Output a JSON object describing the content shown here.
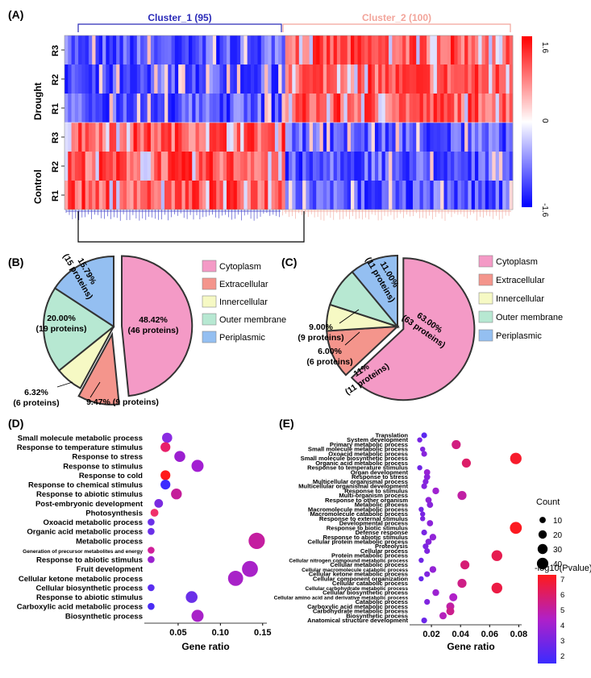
{
  "panels": {
    "A": {
      "label": "(A)",
      "cluster1_title": "Cluster_1 (95)",
      "cluster2_title": "Cluster_2 (100)",
      "group_labels": [
        "Drought",
        "Control"
      ],
      "row_labels": [
        "R3",
        "R2",
        "R1",
        "R3",
        "R2",
        "R1"
      ],
      "color_scale": {
        "max_label": "1.6",
        "mid_label": "0",
        "min_label": "-1.6",
        "high_color": "#ff0000",
        "mid_color": "#ffffff",
        "low_color": "#0000ff"
      },
      "cluster1_color": "#2a2ab8",
      "cluster2_color": "#f2a49a"
    },
    "B": {
      "label": "(B)"
    },
    "C": {
      "label": "(C)"
    },
    "D": {
      "label": "(D)"
    },
    "E": {
      "label": "(E)"
    }
  },
  "pie_legend": {
    "items": [
      {
        "name": "Cytoplasm",
        "color": "#f49ac6"
      },
      {
        "name": "Extracellular",
        "color": "#f4958c"
      },
      {
        "name": "Innercellular",
        "color": "#f6f9c4"
      },
      {
        "name": "Outer membrane",
        "color": "#b7e8d2"
      },
      {
        "name": "Periplasmic",
        "color": "#94bff1"
      }
    ]
  },
  "chart_data": [
    {
      "type": "heatmap",
      "panel": "A",
      "rows": [
        "Drought R3",
        "Drought R2",
        "Drought R1",
        "Control R3",
        "Control R2",
        "Control R1"
      ],
      "clusters": [
        {
          "name": "Cluster_1",
          "proteins": 95
        },
        {
          "name": "Cluster_2",
          "proteins": 100
        }
      ],
      "pattern": {
        "Drought": {
          "Cluster_1": "low",
          "Cluster_2": "high"
        },
        "Control": {
          "Cluster_1": "high",
          "Cluster_2": "low"
        }
      },
      "value_range": [
        -1.6,
        1.6
      ]
    },
    {
      "type": "pie",
      "panel": "B",
      "slices": [
        {
          "category": "Cytoplasm",
          "percent": 48.42,
          "proteins": 46,
          "label1": "48.42%",
          "label2": "(46 proteins)",
          "exploded": true
        },
        {
          "category": "Extracellular",
          "percent": 9.47,
          "proteins": 9,
          "label1": "9.47% (9 proteins)",
          "label2": "",
          "exploded": true
        },
        {
          "category": "Innercellular",
          "percent": 6.32,
          "proteins": 6,
          "label1": "6.32%",
          "label2": "(6 proteins)",
          "exploded": false
        },
        {
          "category": "Outer membrane",
          "percent": 20.0,
          "proteins": 19,
          "label1": "20.00%",
          "label2": "(19 proteins)",
          "exploded": false
        },
        {
          "category": "Periplasmic",
          "percent": 15.79,
          "proteins": 15,
          "label1": "15.79%",
          "label2": "(15 proteins)",
          "exploded": false
        }
      ]
    },
    {
      "type": "pie",
      "panel": "C",
      "slices": [
        {
          "category": "Cytoplasm",
          "percent": 63.0,
          "proteins": 63,
          "label1": "63.00%",
          "label2": "(63 proteins)",
          "exploded": true
        },
        {
          "category": "Extracellular",
          "percent": 11.0,
          "proteins": 11,
          "label1": "11%",
          "label2": "(11 proteins)",
          "exploded": false
        },
        {
          "category": "Innercellular",
          "percent": 6.0,
          "proteins": 6,
          "label1": "6.00%",
          "label2": "(6 proteins)",
          "exploded": false
        },
        {
          "category": "Outer membrane",
          "percent": 9.0,
          "proteins": 9,
          "label1": "9.00%",
          "label2": "(9 proteins)",
          "exploded": false
        },
        {
          "category": "Periplasmic",
          "percent": 11.0,
          "proteins": 11,
          "label1": "11.00%",
          "label2": "(11 proteins)",
          "exploded": false
        }
      ]
    },
    {
      "type": "scatter",
      "panel": "D",
      "xlabel": "Gene ratio",
      "xlim": [
        0.01,
        0.155
      ],
      "xticks": [
        0.05,
        0.1,
        0.15
      ],
      "xtick_labels": [
        "0.05",
        "0.10",
        "0.15"
      ],
      "points": [
        {
          "term": "Small molecule metabolic process",
          "x": 0.037,
          "count": 12,
          "color": "#8a2be2"
        },
        {
          "term": "Response to temperature stimulus",
          "x": 0.035,
          "count": 11,
          "color": "#e8206a"
        },
        {
          "term": "Response to stress",
          "x": 0.052,
          "count": 15,
          "color": "#9b1fd0"
        },
        {
          "term": "Response to stimulus",
          "x": 0.073,
          "count": 19,
          "color": "#a31fd2"
        },
        {
          "term": "Response to cold",
          "x": 0.035,
          "count": 11,
          "color": "#ff1a1a"
        },
        {
          "term": "Response to chemical stimulus",
          "x": 0.035,
          "count": 11,
          "color": "#3b2bff"
        },
        {
          "term": "Response to abiotic stimulus",
          "x": 0.048,
          "count": 14,
          "color": "#c41e9a"
        },
        {
          "term": "Post-embryonic development",
          "x": 0.027,
          "count": 8,
          "color": "#7b2be0"
        },
        {
          "term": "Photosynthesis",
          "x": 0.022,
          "count": 6,
          "color": "#f0306a"
        },
        {
          "term": "Oxoacid metabolic process",
          "x": 0.018,
          "count": 4,
          "color": "#6a30e8"
        },
        {
          "term": "Organic acid metabolic process",
          "x": 0.018,
          "count": 4,
          "color": "#6a30e8"
        },
        {
          "term": "Metabolic process",
          "x": 0.143,
          "count": 40,
          "color": "#c41ea0"
        },
        {
          "term": "Generation of precursor metabolites and energy",
          "x": 0.018,
          "count": 4,
          "color": "#d0209a"
        },
        {
          "term": "Response to abiotic stimulus",
          "x": 0.018,
          "count": 4,
          "color": "#9a22d0"
        },
        {
          "term": "Fruit development",
          "x": 0.135,
          "count": 38,
          "color": "#a822c8"
        },
        {
          "term": "Cellular ketone metabolic process",
          "x": 0.118,
          "count": 33,
          "color": "#a822c8"
        },
        {
          "term": "Cellular biosynthetic process",
          "x": 0.018,
          "count": 4,
          "color": "#5a2ef0"
        },
        {
          "term": "Response to abiotic stimulus",
          "x": 0.066,
          "count": 18,
          "color": "#6a30e8"
        },
        {
          "term": "Carboxylic acid metabolic process",
          "x": 0.018,
          "count": 4,
          "color": "#4a2cf4"
        },
        {
          "term": "Biosynthetic process",
          "x": 0.073,
          "count": 19,
          "color": "#a822c8"
        }
      ]
    },
    {
      "type": "scatter",
      "panel": "E",
      "xlabel": "Gene ratio",
      "xlim": [
        0.005,
        0.082
      ],
      "xticks": [
        0.02,
        0.04,
        0.06,
        0.08
      ],
      "xtick_labels": [
        "0.02",
        "0.04",
        "0.06",
        "0.08"
      ],
      "count_legend": {
        "title": "Count",
        "values": [
          10,
          20,
          30,
          40
        ]
      },
      "color_legend": {
        "title": "-log10(Pvalue)",
        "ticks": [
          2,
          3,
          4,
          5,
          6,
          7
        ],
        "range": [
          1.5,
          7.3
        ]
      },
      "points": [
        {
          "term": "Translation",
          "x": 0.015,
          "count": 4,
          "p": 2.3
        },
        {
          "term": "System development",
          "x": 0.012,
          "count": 3,
          "p": 3.0
        },
        {
          "term": "Primary metabolic process",
          "x": 0.037,
          "count": 12,
          "p": 5.6
        },
        {
          "term": "Small molecule metabolic process",
          "x": 0.014,
          "count": 3,
          "p": 3.2
        },
        {
          "term": "Oxoacid metabolic process",
          "x": 0.015,
          "count": 4,
          "p": 3.4
        },
        {
          "term": "Small molecule biosynthetic process",
          "x": 0.078,
          "count": 20,
          "p": 7.0
        },
        {
          "term": "Organic acid metabolic process",
          "x": 0.044,
          "count": 12,
          "p": 6.0
        },
        {
          "term": "Response to temperature stimulus",
          "x": 0.012,
          "count": 3,
          "p": 2.8
        },
        {
          "term": "Organ development",
          "x": 0.017,
          "count": 5,
          "p": 3.8
        },
        {
          "term": "Response to stress",
          "x": 0.017,
          "count": 5,
          "p": 3.5
        },
        {
          "term": "Multicellular organismal process",
          "x": 0.016,
          "count": 4,
          "p": 3.3
        },
        {
          "term": "Multicellular organismal development",
          "x": 0.015,
          "count": 4,
          "p": 3.3
        },
        {
          "term": "Response to stimulus",
          "x": 0.023,
          "count": 6,
          "p": 4.0
        },
        {
          "term": "Multi-organism process",
          "x": 0.041,
          "count": 12,
          "p": 5.0
        },
        {
          "term": "Response to other organism",
          "x": 0.018,
          "count": 5,
          "p": 3.6
        },
        {
          "term": "Metabolic process",
          "x": 0.019,
          "count": 5,
          "p": 3.4
        },
        {
          "term": "Macromolecule metabolic process",
          "x": 0.013,
          "count": 3,
          "p": 2.9
        },
        {
          "term": "Macromolecule catabolic process",
          "x": 0.014,
          "count": 3,
          "p": 3.0
        },
        {
          "term": "Response to external stimulus",
          "x": 0.014,
          "count": 3,
          "p": 3.1
        },
        {
          "term": "Developmental process",
          "x": 0.019,
          "count": 5,
          "p": 3.5
        },
        {
          "term": "Response to biotic stimulus",
          "x": 0.078,
          "count": 22,
          "p": 7.2
        },
        {
          "term": "Defense response",
          "x": 0.015,
          "count": 4,
          "p": 3.0
        },
        {
          "term": "Response to abiotic stimulus",
          "x": 0.021,
          "count": 6,
          "p": 3.6
        },
        {
          "term": "Cellular protein metabolic process",
          "x": 0.018,
          "count": 5,
          "p": 3.4
        },
        {
          "term": "Proteolysis",
          "x": 0.016,
          "count": 4,
          "p": 3.1
        },
        {
          "term": "Cellular process",
          "x": 0.017,
          "count": 4,
          "p": 3.2
        },
        {
          "term": "Protein metabolic process",
          "x": 0.065,
          "count": 18,
          "p": 6.4
        },
        {
          "term": "Cellular nitrogen compound metabolic process",
          "x": 0.013,
          "count": 3,
          "p": 2.8
        },
        {
          "term": "Cellular metabolic process",
          "x": 0.043,
          "count": 12,
          "p": 5.8
        },
        {
          "term": "Cellular macromolecule catabolic process",
          "x": 0.021,
          "count": 6,
          "p": 3.7
        },
        {
          "term": "Cellular ketone metabolic process",
          "x": 0.017,
          "count": 4,
          "p": 3.2
        },
        {
          "term": "Cellular component organization",
          "x": 0.013,
          "count": 3,
          "p": 2.6
        },
        {
          "term": "Cellular catabolic process",
          "x": 0.041,
          "count": 12,
          "p": 5.5
        },
        {
          "term": "Cellular carbohydrate metabolic process",
          "x": 0.065,
          "count": 18,
          "p": 6.6
        },
        {
          "term": "Cellular biosynthetic process",
          "x": 0.023,
          "count": 6,
          "p": 3.9
        },
        {
          "term": "Cellular amino acid and derivative metabolic process",
          "x": 0.035,
          "count": 9,
          "p": 4.4
        },
        {
          "term": "Catabolic process",
          "x": 0.017,
          "count": 4,
          "p": 3.2
        },
        {
          "term": "Carboxylic acid metabolic process",
          "x": 0.033,
          "count": 9,
          "p": 5.0
        },
        {
          "term": "Carbohydrate metabolic process",
          "x": 0.033,
          "count": 9,
          "p": 5.4
        },
        {
          "term": "Biosynthetic process",
          "x": 0.028,
          "count": 7,
          "p": 4.6
        },
        {
          "term": "Anatomical structure development",
          "x": 0.015,
          "count": 4,
          "p": 2.7
        }
      ]
    }
  ]
}
